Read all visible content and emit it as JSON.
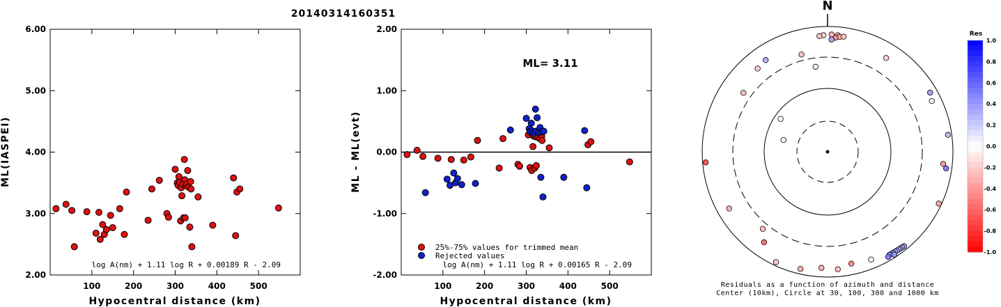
{
  "figure_title": "20140314160351",
  "chart_data": [
    {
      "type": "scatter",
      "xlabel": "Hypocentral distance (km)",
      "ylabel": "ML(IASPEI)",
      "xlim": [
        0,
        600
      ],
      "ylim": [
        2.0,
        6.0
      ],
      "x_ticks": [
        100,
        200,
        300,
        400,
        500
      ],
      "y_ticks": [
        "2.00",
        "3.00",
        "4.00",
        "5.00",
        "6.00"
      ],
      "formula": "log A(nm) + 1.11 log R + 0.00189 R - 2.09",
      "marker_color": "#dd1111",
      "points": [
        [
          14,
          3.08
        ],
        [
          38,
          3.15
        ],
        [
          52,
          3.05
        ],
        [
          58,
          2.46
        ],
        [
          88,
          3.03
        ],
        [
          110,
          2.68
        ],
        [
          117,
          3.02
        ],
        [
          120,
          2.58
        ],
        [
          126,
          2.82
        ],
        [
          130,
          2.66
        ],
        [
          135,
          2.74
        ],
        [
          145,
          2.97
        ],
        [
          150,
          2.77
        ],
        [
          167,
          3.08
        ],
        [
          178,
          2.66
        ],
        [
          183,
          3.35
        ],
        [
          235,
          2.89
        ],
        [
          244,
          3.4
        ],
        [
          262,
          3.54
        ],
        [
          280,
          3.0
        ],
        [
          284,
          2.94
        ],
        [
          300,
          3.72
        ],
        [
          305,
          3.5
        ],
        [
          307,
          3.46
        ],
        [
          309,
          3.6
        ],
        [
          311,
          3.51
        ],
        [
          313,
          2.88
        ],
        [
          314,
          3.42
        ],
        [
          316,
          3.29
        ],
        [
          318,
          3.48
        ],
        [
          320,
          2.93
        ],
        [
          322,
          3.88
        ],
        [
          323,
          3.55
        ],
        [
          324,
          2.93
        ],
        [
          326,
          3.45
        ],
        [
          328,
          3.48
        ],
        [
          330,
          3.7
        ],
        [
          332,
          3.43
        ],
        [
          335,
          2.78
        ],
        [
          337,
          3.52
        ],
        [
          338,
          3.4
        ],
        [
          340,
          2.46
        ],
        [
          355,
          3.27
        ],
        [
          390,
          2.81
        ],
        [
          440,
          3.58
        ],
        [
          445,
          2.64
        ],
        [
          448,
          3.35
        ],
        [
          455,
          3.4
        ],
        [
          548,
          3.09
        ]
      ]
    },
    {
      "type": "scatter",
      "xlabel": "Hypocentral distance (km)",
      "ylabel": "ML - ML(evt)",
      "xlim": [
        0,
        600
      ],
      "ylim": [
        -2.0,
        2.0
      ],
      "x_ticks": [
        100,
        200,
        300,
        400,
        500
      ],
      "y_ticks": [
        "-2.00",
        "-1.00",
        "0.00",
        "1.00",
        "2.00"
      ],
      "ml_label": "ML= 3.11",
      "zero_line": 0.0,
      "formula": "log A(nm) + 1.11 log R + 0.00165 R - 2.09",
      "series": [
        {
          "name": "25%-75% values for trimmed mean",
          "color": "#dd1111",
          "points": [
            [
              14,
              -0.04
            ],
            [
              38,
              0.03
            ],
            [
              52,
              -0.07
            ],
            [
              88,
              -0.1
            ],
            [
              120,
              -0.12
            ],
            [
              150,
              -0.13
            ],
            [
              167,
              -0.08
            ],
            [
              183,
              0.19
            ],
            [
              235,
              -0.26
            ],
            [
              244,
              0.22
            ],
            [
              280,
              -0.2
            ],
            [
              284,
              -0.23
            ],
            [
              305,
              0.28
            ],
            [
              309,
              -0.25
            ],
            [
              311,
              0.36
            ],
            [
              313,
              -0.3
            ],
            [
              314,
              0.3
            ],
            [
              316,
              0.09
            ],
            [
              318,
              0.26
            ],
            [
              320,
              -0.26
            ],
            [
              322,
              0.25
            ],
            [
              324,
              -0.22
            ],
            [
              326,
              0.3
            ],
            [
              328,
              0.24
            ],
            [
              332,
              0.22
            ],
            [
              337,
              0.26
            ],
            [
              338,
              0.19
            ],
            [
              355,
              0.07
            ],
            [
              448,
              0.12
            ],
            [
              455,
              0.17
            ],
            [
              548,
              -0.16
            ]
          ]
        },
        {
          "name": "Rejected values",
          "color": "#1122cc",
          "points": [
            [
              58,
              -0.66
            ],
            [
              110,
              -0.44
            ],
            [
              117,
              -0.54
            ],
            [
              126,
              -0.34
            ],
            [
              130,
              -0.5
            ],
            [
              135,
              -0.43
            ],
            [
              145,
              -0.53
            ],
            [
              178,
              -0.51
            ],
            [
              262,
              0.36
            ],
            [
              300,
              0.55
            ],
            [
              307,
              0.38
            ],
            [
              309,
              0.33
            ],
            [
              312,
              0.47
            ],
            [
              314,
              0.34
            ],
            [
              318,
              0.31
            ],
            [
              322,
              0.7
            ],
            [
              323,
              0.34
            ],
            [
              326,
              0.56
            ],
            [
              330,
              0.32
            ],
            [
              333,
              0.4
            ],
            [
              335,
              -0.41
            ],
            [
              337,
              0.33
            ],
            [
              340,
              -0.73
            ],
            [
              342,
              0.34
            ],
            [
              390,
              -0.41
            ],
            [
              440,
              0.35
            ],
            [
              445,
              -0.58
            ]
          ]
        }
      ]
    },
    {
      "type": "polar-scatter",
      "north_label": "N",
      "caption_line1": "Residuals as a function of azimuth and distance",
      "caption_line2": "Center (10km), Circle at 30, 100, 300 and 1000 km",
      "colorbar": {
        "title": "Res",
        "ticks": [
          "1.0",
          "0.8",
          "0.6",
          "0.4",
          "0.2",
          "0.0",
          "-0.2",
          "-0.4",
          "-0.6",
          "-0.8",
          "-1.0"
        ],
        "min": -1.0,
        "max": 1.0
      },
      "points": [
        {
          "az": 5,
          "dist": 720,
          "res": -0.35
        },
        {
          "az": 6,
          "dist": 680,
          "res": -0.28
        },
        {
          "az": 4,
          "dist": 650,
          "res": -0.45
        },
        {
          "az": 8,
          "dist": 700,
          "res": -0.22
        },
        {
          "az": 2,
          "dist": 730,
          "res": -0.3
        },
        {
          "az": 358,
          "dist": 710,
          "res": -0.15
        },
        {
          "az": 356,
          "dist": 690,
          "res": -0.25
        },
        {
          "az": 2,
          "dist": 600,
          "res": 0.35
        },
        {
          "az": 32,
          "dist": 560,
          "res": -0.2
        },
        {
          "az": 345,
          "dist": 380,
          "res": -0.25
        },
        {
          "az": 352,
          "dist": 220,
          "res": -0.05
        },
        {
          "az": 326,
          "dist": 560,
          "res": 0.3
        },
        {
          "az": 320,
          "dist": 520,
          "res": -0.2
        },
        {
          "az": 60,
          "dist": 760,
          "res": 0.35
        },
        {
          "az": 64,
          "dist": 690,
          "res": 0.05
        },
        {
          "az": 82,
          "dist": 860,
          "res": 0.28
        },
        {
          "az": 305,
          "dist": 410,
          "res": -0.25
        },
        {
          "az": 305,
          "dist": 80,
          "res": 0.02
        },
        {
          "az": 285,
          "dist": 52,
          "res": 0.0
        },
        {
          "az": 265,
          "dist": 885,
          "res": -0.65
        },
        {
          "az": 98,
          "dist": 800,
          "res": 0.5
        },
        {
          "az": 96,
          "dist": 700,
          "res": -0.4
        },
        {
          "az": 240,
          "dist": 630,
          "res": -0.3
        },
        {
          "az": 115,
          "dist": 900,
          "res": -0.35
        },
        {
          "az": 220,
          "dist": 380,
          "res": -0.25
        },
        {
          "az": 215,
          "dist": 560,
          "res": -0.55
        },
        {
          "az": 205,
          "dist": 870,
          "res": -0.2
        },
        {
          "az": 193,
          "dist": 820,
          "res": -0.3
        },
        {
          "az": 183,
          "dist": 700,
          "res": -0.3
        },
        {
          "az": 175,
          "dist": 750,
          "res": -0.25
        },
        {
          "az": 168,
          "dist": 650,
          "res": -0.45
        },
        {
          "az": 158,
          "dist": 700,
          "res": 0.05
        },
        {
          "az": 141,
          "dist": 860,
          "res": 0.35
        },
        {
          "az": 142,
          "dist": 850,
          "res": 0.3
        },
        {
          "az": 143,
          "dist": 845,
          "res": 0.4
        },
        {
          "az": 144,
          "dist": 840,
          "res": 0.28
        },
        {
          "az": 145,
          "dist": 835,
          "res": 0.35
        },
        {
          "az": 146,
          "dist": 830,
          "res": 0.3
        },
        {
          "az": 147,
          "dist": 826,
          "res": 0.25
        },
        {
          "az": 148,
          "dist": 822,
          "res": 0.35
        },
        {
          "az": 149,
          "dist": 818,
          "res": 0.45
        },
        {
          "az": 150,
          "dist": 855,
          "res": 0.5
        },
        {
          "az": 147,
          "dist": 900,
          "res": 0.4
        }
      ]
    }
  ]
}
